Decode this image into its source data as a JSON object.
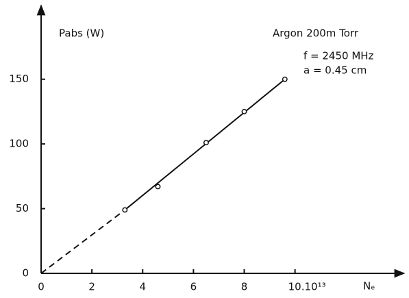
{
  "chart_data": {
    "type": "scatter",
    "y_label": "Pabs (W)",
    "x_label": "Nₑ",
    "annotations": [
      "Argon  200m Torr",
      "f = 2450 MHz",
      "a = 0.45 cm"
    ],
    "x": [
      3.3,
      4.6,
      6.5,
      8.0,
      9.6
    ],
    "values": [
      49,
      67,
      101,
      125,
      150
    ],
    "color": "#111111",
    "lines": [
      {
        "x": [
          0,
          3.3
        ],
        "values": [
          0,
          49
        ],
        "style": "dashed"
      },
      {
        "x": [
          3.3,
          9.6
        ],
        "values": [
          49,
          150
        ],
        "style": "solid"
      }
    ],
    "xlim": [
      0,
      14.3
    ],
    "ylim": [
      0,
      207
    ],
    "xticks": [
      0,
      2,
      4,
      6,
      8,
      {
        "value": 10,
        "label": "10.10¹³"
      }
    ],
    "yticks": [
      0,
      50,
      100,
      150
    ]
  }
}
